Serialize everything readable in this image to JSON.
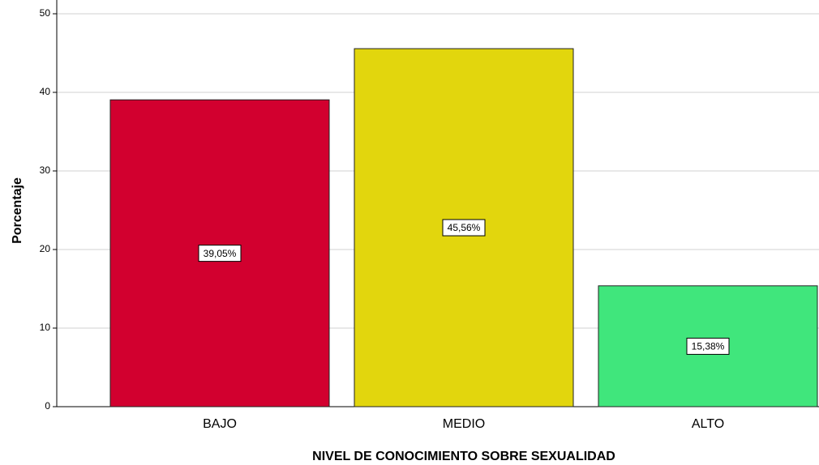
{
  "chart_data": {
    "type": "bar",
    "x_label": "NIVEL DE CONOCIMIENTO SOBRE SEXUALIDAD",
    "y_label": "Porcentaje",
    "categories": [
      "BAJO",
      "MEDIO",
      "ALTO"
    ],
    "values": [
      39.05,
      45.56,
      15.38
    ],
    "value_labels": [
      "39,05%",
      "45,56%",
      "15,38%"
    ],
    "colors": [
      "#d2002f",
      "#e2d60d",
      "#40e67c"
    ],
    "ylim": [
      0,
      50
    ],
    "yticks": [
      0,
      10,
      20,
      30,
      40,
      50
    ],
    "grid": true
  }
}
